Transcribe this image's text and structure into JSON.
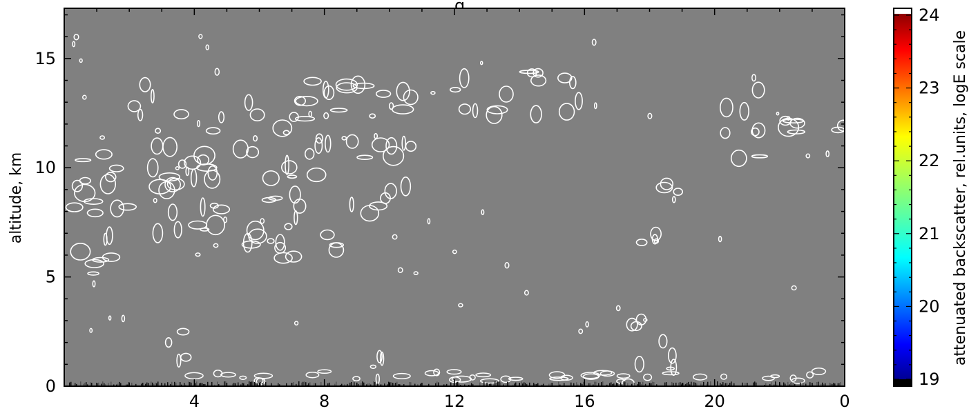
{
  "chart_data": {
    "type": "heatmap",
    "title": ", , , g , ,",
    "ylabel": "altitude, km",
    "x_ticks": [
      "4",
      "8",
      "12",
      "16",
      "20",
      "0"
    ],
    "x_tick_hours": [
      4,
      8,
      12,
      16,
      20,
      24
    ],
    "xlim": [
      0,
      24
    ],
    "y_ticks": [
      "0",
      "5",
      "10",
      "15"
    ],
    "ylim": [
      0,
      17.3
    ],
    "background_color": "#808080",
    "contour_color": "#ffffff",
    "colorbar": {
      "label": "attenuated backscatter, rel.units, logE scale",
      "ticks": [
        "19",
        "20",
        "21",
        "22",
        "23",
        "24"
      ],
      "range": [
        19,
        24
      ],
      "colormap": "jet"
    },
    "cloud_regions": [
      {
        "x": [
          0.1,
          2.0
        ],
        "y": [
          4.8,
          11.2
        ]
      },
      {
        "x": [
          1.9,
          2.8
        ],
        "y": [
          12.3,
          14.8
        ]
      },
      {
        "x": [
          2.6,
          5.5
        ],
        "y": [
          6.3,
          12.5
        ]
      },
      {
        "x": [
          5.3,
          7.3
        ],
        "y": [
          5.8,
          13.3
        ]
      },
      {
        "x": [
          6.9,
          8.4
        ],
        "y": [
          5.9,
          7.5
        ]
      },
      {
        "x": [
          7.0,
          10.8
        ],
        "y": [
          7.8,
          14.0
        ]
      },
      {
        "x": [
          12.0,
          16.3
        ],
        "y": [
          12.2,
          14.4
        ]
      },
      {
        "x": [
          17.6,
          18.4
        ],
        "y": [
          5.8,
          7.0
        ]
      },
      {
        "x": [
          18.1,
          19.4
        ],
        "y": [
          8.2,
          9.4
        ]
      },
      {
        "x": [
          20.1,
          21.4
        ],
        "y": [
          10.4,
          14.0
        ]
      },
      {
        "x": [
          22.0,
          24.0
        ],
        "y": [
          11.2,
          13.2
        ]
      },
      {
        "x": [
          2.9,
          3.8
        ],
        "y": [
          0.9,
          2.7
        ]
      },
      {
        "x": [
          16.8,
          17.8
        ],
        "y": [
          0.0,
          3.9
        ]
      },
      {
        "x": [
          18.3,
          18.8
        ],
        "y": [
          0.4,
          2.1
        ]
      },
      {
        "x": [
          9.5,
          10.0
        ],
        "y": [
          0.1,
          1.6
        ]
      }
    ]
  }
}
